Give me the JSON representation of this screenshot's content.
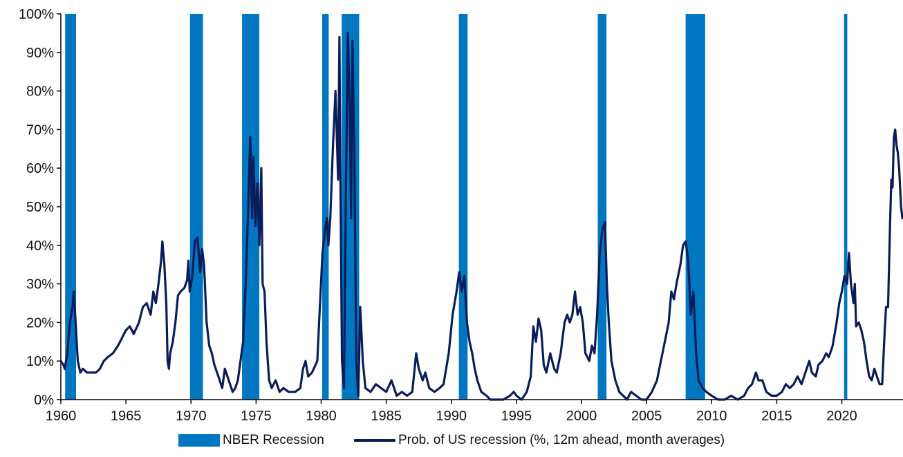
{
  "colors": {
    "recession": "#0077C0",
    "line": "#0B1C5A",
    "axis": "#000000"
  },
  "legend": {
    "recession_label": "NBER Recession",
    "line_label": "Prob. of US recession (%, 12m ahead, month averages)"
  },
  "chart_data": {
    "type": "line",
    "title": "",
    "xlabel": "",
    "ylabel": "",
    "xlim": [
      1960,
      2024.7
    ],
    "ylim": [
      0,
      100
    ],
    "x_ticks": [
      1960,
      1965,
      1970,
      1975,
      1980,
      1985,
      1990,
      1995,
      2000,
      2005,
      2010,
      2015,
      2020
    ],
    "y_ticks": [
      0,
      10,
      20,
      30,
      40,
      50,
      60,
      70,
      80,
      90,
      100
    ],
    "y_tick_labels": [
      "0%",
      "10%",
      "20%",
      "30%",
      "40%",
      "50%",
      "60%",
      "70%",
      "80%",
      "90%",
      "100%"
    ],
    "recessions": [
      [
        1960.33,
        1961.17
      ],
      [
        1969.92,
        1970.92
      ],
      [
        1973.92,
        1975.25
      ],
      [
        1980.08,
        1980.58
      ],
      [
        1981.58,
        1982.92
      ],
      [
        1990.58,
        1991.25
      ],
      [
        2001.25,
        2001.92
      ],
      [
        2008.0,
        2009.5
      ],
      [
        2020.17,
        2020.42
      ]
    ],
    "series": [
      {
        "name": "Prob. of US recession (%, 12m ahead, month averages)",
        "points": [
          [
            1960.0,
            10
          ],
          [
            1960.2,
            9
          ],
          [
            1960.3,
            8
          ],
          [
            1960.5,
            12
          ],
          [
            1960.7,
            20
          ],
          [
            1960.9,
            24
          ],
          [
            1961.0,
            28
          ],
          [
            1961.1,
            22
          ],
          [
            1961.3,
            10
          ],
          [
            1961.5,
            7
          ],
          [
            1961.7,
            8
          ],
          [
            1962.0,
            7
          ],
          [
            1962.3,
            7
          ],
          [
            1962.7,
            7
          ],
          [
            1963.0,
            8
          ],
          [
            1963.3,
            10
          ],
          [
            1963.6,
            11
          ],
          [
            1964.0,
            12
          ],
          [
            1964.4,
            14
          ],
          [
            1964.7,
            16
          ],
          [
            1965.0,
            18
          ],
          [
            1965.3,
            19
          ],
          [
            1965.6,
            17
          ],
          [
            1966.0,
            20
          ],
          [
            1966.3,
            24
          ],
          [
            1966.6,
            25
          ],
          [
            1966.9,
            22
          ],
          [
            1967.1,
            28
          ],
          [
            1967.3,
            25
          ],
          [
            1967.5,
            30
          ],
          [
            1967.7,
            36
          ],
          [
            1967.8,
            41
          ],
          [
            1967.95,
            35
          ],
          [
            1968.1,
            25
          ],
          [
            1968.2,
            10
          ],
          [
            1968.3,
            8
          ],
          [
            1968.4,
            12
          ],
          [
            1968.6,
            15
          ],
          [
            1968.8,
            20
          ],
          [
            1969.0,
            27
          ],
          [
            1969.2,
            28
          ],
          [
            1969.5,
            29
          ],
          [
            1969.7,
            31
          ],
          [
            1969.8,
            36
          ],
          [
            1969.9,
            28
          ],
          [
            1970.1,
            32
          ],
          [
            1970.3,
            41
          ],
          [
            1970.5,
            42
          ],
          [
            1970.7,
            33
          ],
          [
            1970.85,
            39
          ],
          [
            1971.0,
            35
          ],
          [
            1971.2,
            20
          ],
          [
            1971.4,
            14
          ],
          [
            1971.6,
            12
          ],
          [
            1971.8,
            9
          ],
          [
            1972.0,
            7
          ],
          [
            1972.2,
            5
          ],
          [
            1972.4,
            3
          ],
          [
            1972.6,
            8
          ],
          [
            1972.8,
            6
          ],
          [
            1973.0,
            4
          ],
          [
            1973.2,
            2
          ],
          [
            1973.4,
            3
          ],
          [
            1973.6,
            5
          ],
          [
            1973.8,
            10
          ],
          [
            1974.0,
            15
          ],
          [
            1974.2,
            30
          ],
          [
            1974.4,
            50
          ],
          [
            1974.55,
            68
          ],
          [
            1974.7,
            47
          ],
          [
            1974.8,
            63
          ],
          [
            1974.95,
            45
          ],
          [
            1975.1,
            56
          ],
          [
            1975.25,
            40
          ],
          [
            1975.4,
            60
          ],
          [
            1975.5,
            30
          ],
          [
            1975.65,
            28
          ],
          [
            1975.8,
            15
          ],
          [
            1976.0,
            5
          ],
          [
            1976.2,
            3
          ],
          [
            1976.5,
            5
          ],
          [
            1976.8,
            2
          ],
          [
            1977.1,
            3
          ],
          [
            1977.5,
            2
          ],
          [
            1978.0,
            2
          ],
          [
            1978.4,
            3
          ],
          [
            1978.6,
            8
          ],
          [
            1978.8,
            10
          ],
          [
            1979.0,
            6
          ],
          [
            1979.3,
            7
          ],
          [
            1979.7,
            10
          ],
          [
            1979.9,
            24
          ],
          [
            1980.1,
            38
          ],
          [
            1980.3,
            44
          ],
          [
            1980.45,
            47
          ],
          [
            1980.55,
            40
          ],
          [
            1980.7,
            47
          ],
          [
            1980.9,
            65
          ],
          [
            1981.1,
            80
          ],
          [
            1981.3,
            57
          ],
          [
            1981.4,
            94
          ],
          [
            1981.5,
            50
          ],
          [
            1981.6,
            10
          ],
          [
            1981.75,
            3
          ],
          [
            1981.9,
            55
          ],
          [
            1982.05,
            95
          ],
          [
            1982.2,
            75
          ],
          [
            1982.3,
            47
          ],
          [
            1982.4,
            93
          ],
          [
            1982.55,
            64
          ],
          [
            1982.7,
            10
          ],
          [
            1982.85,
            1
          ],
          [
            1983.0,
            24
          ],
          [
            1983.2,
            10
          ],
          [
            1983.4,
            3
          ],
          [
            1983.8,
            2
          ],
          [
            1984.2,
            4
          ],
          [
            1984.6,
            3
          ],
          [
            1985.0,
            2
          ],
          [
            1985.4,
            5
          ],
          [
            1985.8,
            1
          ],
          [
            1986.2,
            2
          ],
          [
            1986.6,
            1
          ],
          [
            1987.0,
            2
          ],
          [
            1987.3,
            12
          ],
          [
            1987.5,
            8
          ],
          [
            1987.8,
            5
          ],
          [
            1988.0,
            7
          ],
          [
            1988.3,
            3
          ],
          [
            1988.7,
            2
          ],
          [
            1989.1,
            3
          ],
          [
            1989.4,
            4
          ],
          [
            1989.8,
            12
          ],
          [
            1990.1,
            22
          ],
          [
            1990.4,
            28
          ],
          [
            1990.6,
            33
          ],
          [
            1990.8,
            28
          ],
          [
            1991.0,
            32
          ],
          [
            1991.2,
            20
          ],
          [
            1991.4,
            15
          ],
          [
            1991.6,
            12
          ],
          [
            1991.8,
            8
          ],
          [
            1992.0,
            5
          ],
          [
            1992.3,
            2
          ],
          [
            1992.7,
            1
          ],
          [
            1993.0,
            0
          ],
          [
            1993.5,
            0
          ],
          [
            1994.0,
            0
          ],
          [
            1994.5,
            1
          ],
          [
            1994.8,
            2
          ],
          [
            1995.0,
            1
          ],
          [
            1995.4,
            0
          ],
          [
            1995.8,
            2
          ],
          [
            1996.1,
            6
          ],
          [
            1996.3,
            19
          ],
          [
            1996.5,
            15
          ],
          [
            1996.7,
            21
          ],
          [
            1996.9,
            18
          ],
          [
            1997.1,
            9
          ],
          [
            1997.3,
            7
          ],
          [
            1997.6,
            12
          ],
          [
            1997.9,
            8
          ],
          [
            1998.1,
            7
          ],
          [
            1998.4,
            12
          ],
          [
            1998.7,
            20
          ],
          [
            1998.9,
            22
          ],
          [
            1999.1,
            20
          ],
          [
            1999.3,
            22
          ],
          [
            1999.5,
            28
          ],
          [
            1999.7,
            22
          ],
          [
            1999.9,
            24
          ],
          [
            2000.1,
            20
          ],
          [
            2000.3,
            12
          ],
          [
            2000.6,
            10
          ],
          [
            2000.8,
            14
          ],
          [
            2001.0,
            12
          ],
          [
            2001.2,
            22
          ],
          [
            2001.4,
            38
          ],
          [
            2001.6,
            44
          ],
          [
            2001.8,
            46
          ],
          [
            2001.95,
            30
          ],
          [
            2002.1,
            20
          ],
          [
            2002.3,
            10
          ],
          [
            2002.6,
            5
          ],
          [
            2002.9,
            2
          ],
          [
            2003.2,
            1
          ],
          [
            2003.5,
            0
          ],
          [
            2003.8,
            2
          ],
          [
            2004.2,
            1
          ],
          [
            2004.6,
            0
          ],
          [
            2005.0,
            0
          ],
          [
            2005.4,
            2
          ],
          [
            2005.8,
            5
          ],
          [
            2006.1,
            10
          ],
          [
            2006.4,
            15
          ],
          [
            2006.7,
            20
          ],
          [
            2006.9,
            28
          ],
          [
            2007.1,
            26
          ],
          [
            2007.3,
            30
          ],
          [
            2007.6,
            35
          ],
          [
            2007.8,
            40
          ],
          [
            2008.0,
            41
          ],
          [
            2008.2,
            36
          ],
          [
            2008.4,
            22
          ],
          [
            2008.6,
            28
          ],
          [
            2008.8,
            12
          ],
          [
            2009.0,
            5
          ],
          [
            2009.3,
            3
          ],
          [
            2009.6,
            2
          ],
          [
            2010.0,
            1
          ],
          [
            2010.5,
            0
          ],
          [
            2011.0,
            0
          ],
          [
            2011.5,
            1
          ],
          [
            2012.0,
            0
          ],
          [
            2012.5,
            1
          ],
          [
            2012.8,
            3
          ],
          [
            2013.1,
            4
          ],
          [
            2013.4,
            7
          ],
          [
            2013.6,
            5
          ],
          [
            2013.9,
            5
          ],
          [
            2014.2,
            2
          ],
          [
            2014.6,
            1
          ],
          [
            2015.0,
            1
          ],
          [
            2015.4,
            2
          ],
          [
            2015.7,
            4
          ],
          [
            2016.0,
            3
          ],
          [
            2016.3,
            4
          ],
          [
            2016.6,
            6
          ],
          [
            2016.9,
            4
          ],
          [
            2017.2,
            7
          ],
          [
            2017.5,
            10
          ],
          [
            2017.7,
            7
          ],
          [
            2018.0,
            6
          ],
          [
            2018.2,
            9
          ],
          [
            2018.5,
            10
          ],
          [
            2018.8,
            12
          ],
          [
            2019.0,
            11
          ],
          [
            2019.3,
            14
          ],
          [
            2019.6,
            20
          ],
          [
            2019.8,
            25
          ],
          [
            2020.0,
            28
          ],
          [
            2020.2,
            32
          ],
          [
            2020.4,
            30
          ],
          [
            2020.55,
            38
          ],
          [
            2020.7,
            30
          ],
          [
            2020.9,
            25
          ],
          [
            2021.0,
            30
          ],
          [
            2021.1,
            19
          ],
          [
            2021.3,
            20
          ],
          [
            2021.5,
            18
          ],
          [
            2021.7,
            15
          ],
          [
            2021.9,
            10
          ],
          [
            2022.1,
            6
          ],
          [
            2022.3,
            5
          ],
          [
            2022.5,
            8
          ],
          [
            2022.7,
            6
          ],
          [
            2022.9,
            4
          ],
          [
            2023.1,
            4
          ],
          [
            2023.3,
            18
          ],
          [
            2023.4,
            24
          ],
          [
            2023.55,
            24
          ],
          [
            2023.7,
            45
          ],
          [
            2023.8,
            57
          ],
          [
            2023.9,
            55
          ],
          [
            2024.0,
            68
          ],
          [
            2024.1,
            70
          ],
          [
            2024.2,
            66
          ],
          [
            2024.3,
            64
          ],
          [
            2024.4,
            60
          ],
          [
            2024.55,
            50
          ],
          [
            2024.65,
            47
          ]
        ]
      }
    ]
  }
}
